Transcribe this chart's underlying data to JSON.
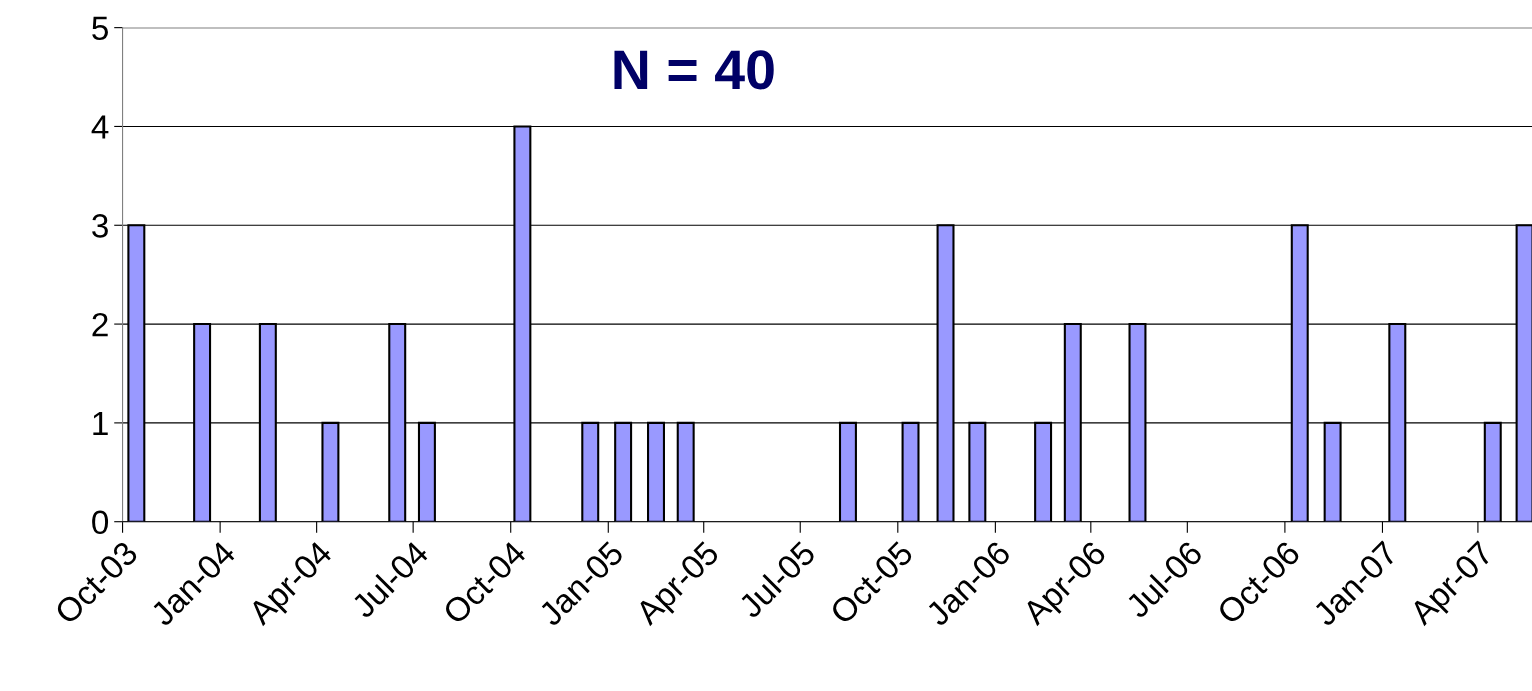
{
  "chart_data": {
    "type": "bar",
    "x": [
      "2003-10-14",
      "2003-12-15",
      "2004-02-15",
      "2004-04-14",
      "2004-06-16",
      "2004-07-14",
      "2004-10-12",
      "2004-12-15",
      "2005-01-15",
      "2005-02-15",
      "2005-03-15",
      "2005-08-15",
      "2005-10-13",
      "2005-11-15",
      "2005-12-15",
      "2006-02-15",
      "2006-03-15",
      "2006-05-15",
      "2006-10-15",
      "2006-11-15",
      "2007-01-15",
      "2007-04-15",
      "2007-05-15"
    ],
    "values": [
      3,
      2,
      2,
      1,
      2,
      1,
      4,
      1,
      1,
      1,
      1,
      1,
      1,
      3,
      1,
      1,
      2,
      2,
      3,
      1,
      2,
      1,
      3
    ],
    "color": "#9999ff",
    "annotations": [
      "N = 40"
    ],
    "xlim": [
      "2003-10-01",
      "2007-05-22"
    ],
    "xticks": [
      {
        "value": "2003-10-01",
        "label": "Oct-03"
      },
      {
        "value": "2004-01-01",
        "label": "Jan-04"
      },
      {
        "value": "2004-04-01",
        "label": "Apr-04"
      },
      {
        "value": "2004-07-01",
        "label": "Jul-04"
      },
      {
        "value": "2004-10-01",
        "label": "Oct-04"
      },
      {
        "value": "2005-01-01",
        "label": "Jan-05"
      },
      {
        "value": "2005-04-01",
        "label": "Apr-05"
      },
      {
        "value": "2005-07-01",
        "label": "Jul-05"
      },
      {
        "value": "2005-10-01",
        "label": "Oct-05"
      },
      {
        "value": "2006-01-01",
        "label": "Jan-06"
      },
      {
        "value": "2006-04-01",
        "label": "Apr-06"
      },
      {
        "value": "2006-07-01",
        "label": "Jul-06"
      },
      {
        "value": "2006-10-01",
        "label": "Oct-06"
      },
      {
        "value": "2007-01-01",
        "label": "Jan-07"
      },
      {
        "value": "2007-04-01",
        "label": "Apr-07"
      }
    ],
    "ylim": [
      0,
      5
    ],
    "yticks": [
      0,
      1,
      2,
      3,
      4,
      5
    ],
    "grid": "y"
  }
}
